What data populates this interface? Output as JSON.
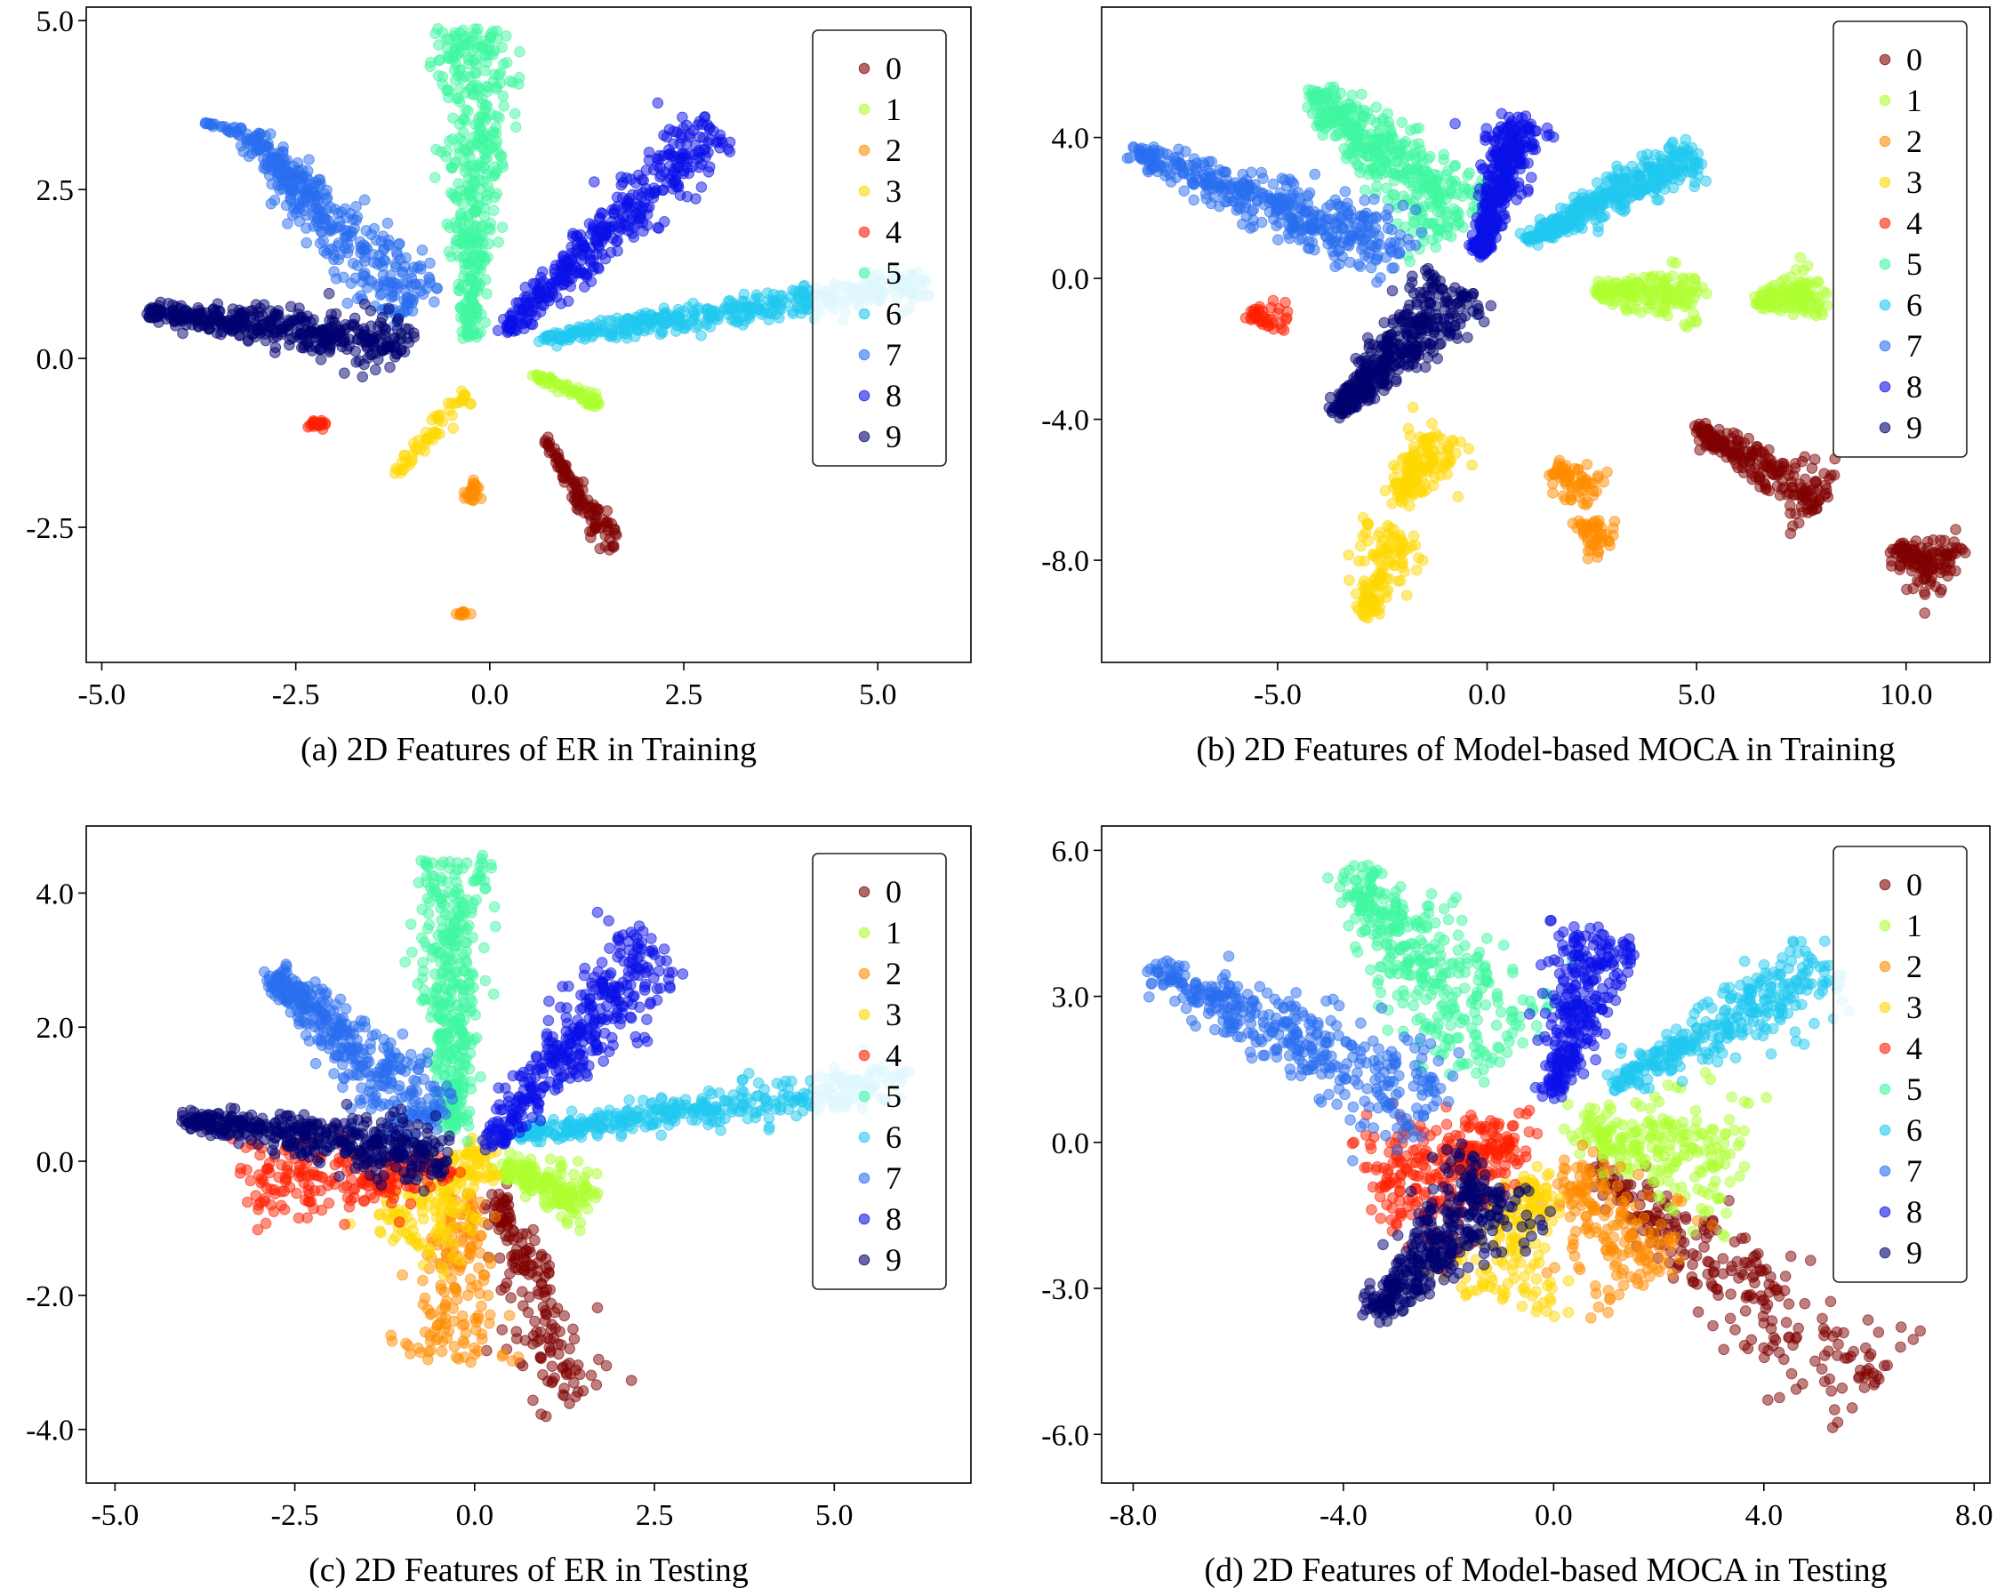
{
  "legend_labels": [
    "0",
    "1",
    "2",
    "3",
    "4",
    "5",
    "6",
    "7",
    "8",
    "9"
  ],
  "colors": [
    "#7f0000",
    "#adff2f",
    "#ff8c00",
    "#ffd700",
    "#ff2000",
    "#40f7a0",
    "#20c8f0",
    "#2a6ef0",
    "#0a10e8",
    "#000070"
  ],
  "chart_data": [
    {
      "type": "scatter",
      "caption": "(a) 2D Features of ER in Training",
      "xlabel": "",
      "ylabel": "",
      "xlim": [
        -5.2,
        6.2
      ],
      "ylim": [
        -4.5,
        5.2
      ],
      "xticks": [
        -5.0,
        -2.5,
        0.0,
        2.5,
        5.0
      ],
      "xtick_labels": [
        "-5.0",
        "-2.5",
        "0.0",
        "2.5",
        "5.0"
      ],
      "yticks": [
        -2.5,
        0.0,
        2.5,
        5.0
      ],
      "ytick_labels": [
        "-2.5",
        "0.0",
        "2.5",
        "5.0"
      ],
      "legend_position": "top-right",
      "grid": false,
      "series": [
        {
          "name": "0",
          "clusters": [
            {
              "from": [
                0.7,
                -1.2
              ],
              "to": [
                1.6,
                -2.8
              ],
              "width": 0.08,
              "n": 110
            }
          ]
        },
        {
          "name": "1",
          "clusters": [
            {
              "from": [
                0.6,
                -0.25
              ],
              "to": [
                1.4,
                -0.65
              ],
              "width": 0.06,
              "n": 70
            }
          ]
        },
        {
          "name": "2",
          "clusters": [
            {
              "from": [
                -0.2,
                -1.8
              ],
              "to": [
                -0.2,
                -2.1
              ],
              "width": 0.05,
              "n": 25
            },
            {
              "from": [
                -0.35,
                -3.75
              ],
              "to": [
                -0.35,
                -3.8
              ],
              "width": 0.04,
              "n": 12
            }
          ]
        },
        {
          "name": "3",
          "clusters": [
            {
              "from": [
                -1.2,
                -1.7
              ],
              "to": [
                -0.3,
                -0.5
              ],
              "width": 0.06,
              "n": 55
            }
          ]
        },
        {
          "name": "4",
          "clusters": [
            {
              "from": [
                -2.4,
                -1.0
              ],
              "to": [
                -2.1,
                -0.95
              ],
              "width": 0.04,
              "n": 20
            }
          ]
        },
        {
          "name": "5",
          "clusters": [
            {
              "from": [
                -0.25,
                0.3
              ],
              "to": [
                -0.15,
                4.9
              ],
              "width": 0.22,
              "n": 420
            }
          ]
        },
        {
          "name": "6",
          "clusters": [
            {
              "from": [
                0.7,
                0.3
              ],
              "to": [
                5.6,
                1.1
              ],
              "width": 0.13,
              "n": 420
            }
          ]
        },
        {
          "name": "7",
          "clusters": [
            {
              "from": [
                -3.1,
                3.3
              ],
              "to": [
                -0.9,
                0.7
              ],
              "width": 0.23,
              "n": 380
            },
            {
              "from": [
                -3.7,
                3.5
              ],
              "to": [
                -3.2,
                3.35
              ],
              "width": 0.03,
              "n": 25
            }
          ]
        },
        {
          "name": "8",
          "clusters": [
            {
              "from": [
                0.2,
                0.4
              ],
              "to": [
                2.9,
                3.4
              ],
              "width": 0.2,
              "n": 400
            }
          ]
        },
        {
          "name": "9",
          "clusters": [
            {
              "from": [
                -4.4,
                0.7
              ],
              "to": [
                -1.0,
                0.2
              ],
              "width": 0.17,
              "n": 420
            }
          ]
        }
      ]
    },
    {
      "type": "scatter",
      "caption": "(b) 2D Features of Model-based MOCA in Training",
      "xlabel": "",
      "ylabel": "",
      "xlim": [
        -9.2,
        12.0
      ],
      "ylim": [
        -10.9,
        7.7
      ],
      "xticks": [
        -5.0,
        0.0,
        5.0,
        10.0
      ],
      "xtick_labels": [
        "-5.0",
        "0.0",
        "5.0",
        "10.0"
      ],
      "yticks": [
        -8.0,
        -4.0,
        0.0,
        4.0
      ],
      "ytick_labels": [
        "-8.0",
        "-4.0",
        "0.0",
        "4.0"
      ],
      "legend_position": "top-right",
      "grid": false,
      "series": [
        {
          "name": "0",
          "clusters": [
            {
              "from": [
                5.0,
                -4.3
              ],
              "to": [
                8.0,
                -6.3
              ],
              "width": 0.35,
              "n": 220
            },
            {
              "from": [
                9.8,
                -7.7
              ],
              "to": [
                11.0,
                -8.4
              ],
              "width": 0.4,
              "n": 130
            }
          ]
        },
        {
          "name": "1",
          "clusters": [
            {
              "from": [
                2.5,
                -0.4
              ],
              "to": [
                5.0,
                -0.5
              ],
              "width": 0.35,
              "n": 170
            },
            {
              "from": [
                6.5,
                -0.7
              ],
              "to": [
                8.0,
                -0.2
              ],
              "width": 0.35,
              "n": 120
            }
          ]
        },
        {
          "name": "2",
          "clusters": [
            {
              "from": [
                1.6,
                -5.3
              ],
              "to": [
                2.6,
                -6.2
              ],
              "width": 0.35,
              "n": 70
            },
            {
              "from": [
                2.2,
                -7.0
              ],
              "to": [
                2.9,
                -7.5
              ],
              "width": 0.3,
              "n": 50
            }
          ]
        },
        {
          "name": "3",
          "clusters": [
            {
              "from": [
                -2.1,
                -6.3
              ],
              "to": [
                -1.0,
                -4.3
              ],
              "width": 0.4,
              "n": 140
            },
            {
              "from": [
                -3.0,
                -9.6
              ],
              "to": [
                -2.0,
                -7.2
              ],
              "width": 0.35,
              "n": 140
            }
          ]
        },
        {
          "name": "4",
          "clusters": [
            {
              "from": [
                -5.6,
                -1.0
              ],
              "to": [
                -4.8,
                -1.1
              ],
              "width": 0.25,
              "n": 40
            }
          ]
        },
        {
          "name": "5",
          "clusters": [
            {
              "from": [
                -4.2,
                5.3
              ],
              "to": [
                -0.5,
                1.6
              ],
              "width": 0.55,
              "n": 420
            }
          ]
        },
        {
          "name": "6",
          "clusters": [
            {
              "from": [
                1.0,
                1.1
              ],
              "to": [
                5.0,
                3.6
              ],
              "width": 0.3,
              "n": 380
            }
          ]
        },
        {
          "name": "7",
          "clusters": [
            {
              "from": [
                -8.4,
                3.6
              ],
              "to": [
                -2.0,
                0.7
              ],
              "width": 0.45,
              "n": 420
            }
          ]
        },
        {
          "name": "8",
          "clusters": [
            {
              "from": [
                -0.2,
                0.7
              ],
              "to": [
                0.8,
                4.5
              ],
              "width": 0.3,
              "n": 380
            }
          ]
        },
        {
          "name": "9",
          "clusters": [
            {
              "from": [
                -3.6,
                -3.8
              ],
              "to": [
                -0.6,
                -0.3
              ],
              "width": 0.4,
              "n": 420
            }
          ]
        }
      ]
    },
    {
      "type": "scatter",
      "caption": "(c) 2D Features of ER in Testing",
      "xlabel": "",
      "ylabel": "",
      "xlim": [
        -5.4,
        6.9
      ],
      "ylim": [
        -4.8,
        5.0
      ],
      "xticks": [
        -5.0,
        -2.5,
        0.0,
        2.5,
        5.0
      ],
      "xtick_labels": [
        "-5.0",
        "-2.5",
        "0.0",
        "2.5",
        "5.0"
      ],
      "yticks": [
        -4.0,
        -2.0,
        0.0,
        2.0,
        4.0
      ],
      "ytick_labels": [
        "-4.0",
        "-2.0",
        "0.0",
        "2.0",
        "4.0"
      ],
      "legend_position": "top-right",
      "grid": false,
      "series": [
        {
          "name": "0",
          "clusters": [
            {
              "from": [
                0.3,
                -0.5
              ],
              "to": [
                1.4,
                -3.6
              ],
              "width": 0.28,
              "n": 180
            }
          ]
        },
        {
          "name": "1",
          "clusters": [
            {
              "from": [
                0.4,
                -0.1
              ],
              "to": [
                1.6,
                -0.6
              ],
              "width": 0.22,
              "n": 160
            }
          ]
        },
        {
          "name": "2",
          "clusters": [
            {
              "from": [
                -0.1,
                -0.5
              ],
              "to": [
                -0.4,
                -2.9
              ],
              "width": 0.32,
              "n": 170
            }
          ]
        },
        {
          "name": "3",
          "clusters": [
            {
              "from": [
                0.2,
                0.2
              ],
              "to": [
                -1.1,
                -1.2
              ],
              "width": 0.35,
              "n": 180
            }
          ]
        },
        {
          "name": "4",
          "clusters": [
            {
              "from": [
                -0.4,
                -0.1
              ],
              "to": [
                -3.2,
                -0.4
              ],
              "width": 0.35,
              "n": 220
            }
          ]
        },
        {
          "name": "5",
          "clusters": [
            {
              "from": [
                -0.3,
                0.5
              ],
              "to": [
                -0.3,
                4.5
              ],
              "width": 0.25,
              "n": 400
            }
          ]
        },
        {
          "name": "6",
          "clusters": [
            {
              "from": [
                0.6,
                0.4
              ],
              "to": [
                6.0,
                1.2
              ],
              "width": 0.17,
              "n": 380
            }
          ]
        },
        {
          "name": "7",
          "clusters": [
            {
              "from": [
                -2.8,
                2.8
              ],
              "to": [
                -0.6,
                0.6
              ],
              "width": 0.28,
              "n": 380
            }
          ]
        },
        {
          "name": "8",
          "clusters": [
            {
              "from": [
                0.2,
                0.3
              ],
              "to": [
                2.5,
                3.2
              ],
              "width": 0.28,
              "n": 380
            }
          ]
        },
        {
          "name": "9",
          "clusters": [
            {
              "from": [
                -4.0,
                0.6
              ],
              "to": [
                -0.4,
                0.1
              ],
              "width": 0.22,
              "n": 420
            }
          ]
        }
      ]
    },
    {
      "type": "scatter",
      "caption": "(d) 2D Features of Model-based MOCA in Testing",
      "xlabel": "",
      "ylabel": "",
      "xlim": [
        -8.6,
        8.3
      ],
      "ylim": [
        -7.0,
        6.5
      ],
      "xticks": [
        -8.0,
        -4.0,
        0.0,
        4.0,
        8.0
      ],
      "xtick_labels": [
        "-8.0",
        "-4.0",
        "0.0",
        "4.0",
        "8.0"
      ],
      "yticks": [
        -6.0,
        -3.0,
        0.0,
        3.0,
        6.0
      ],
      "ytick_labels": [
        "-6.0",
        "-3.0",
        "0.0",
        "3.0",
        "6.0"
      ],
      "legend_position": "top-right",
      "grid": false,
      "series": [
        {
          "name": "0",
          "clusters": [
            {
              "from": [
                0.8,
                -0.6
              ],
              "to": [
                6.2,
                -5.0
              ],
              "width": 0.55,
              "n": 260
            }
          ]
        },
        {
          "name": "1",
          "clusters": [
            {
              "from": [
                0.5,
                0.3
              ],
              "to": [
                3.5,
                -0.4
              ],
              "width": 0.6,
              "n": 220
            }
          ]
        },
        {
          "name": "2",
          "clusters": [
            {
              "from": [
                0.3,
                -0.6
              ],
              "to": [
                1.8,
                -2.8
              ],
              "width": 0.6,
              "n": 180
            }
          ]
        },
        {
          "name": "3",
          "clusters": [
            {
              "from": [
                -0.3,
                -0.8
              ],
              "to": [
                -1.3,
                -3.2
              ],
              "width": 0.55,
              "n": 180
            }
          ]
        },
        {
          "name": "4",
          "clusters": [
            {
              "from": [
                -0.6,
                0.2
              ],
              "to": [
                -3.2,
                -1.2
              ],
              "width": 0.65,
              "n": 300
            }
          ]
        },
        {
          "name": "5",
          "clusters": [
            {
              "from": [
                -3.8,
                5.4
              ],
              "to": [
                -1.0,
                1.8
              ],
              "width": 0.7,
              "n": 360
            }
          ]
        },
        {
          "name": "6",
          "clusters": [
            {
              "from": [
                1.2,
                1.2
              ],
              "to": [
                5.2,
                3.6
              ],
              "width": 0.38,
              "n": 320
            }
          ]
        },
        {
          "name": "7",
          "clusters": [
            {
              "from": [
                -7.6,
                3.5
              ],
              "to": [
                -2.2,
                0.8
              ],
              "width": 0.5,
              "n": 380
            }
          ]
        },
        {
          "name": "8",
          "clusters": [
            {
              "from": [
                0.0,
                1.0
              ],
              "to": [
                0.9,
                4.3
              ],
              "width": 0.35,
              "n": 300
            }
          ]
        },
        {
          "name": "9",
          "clusters": [
            {
              "from": [
                -3.4,
                -3.5
              ],
              "to": [
                -1.0,
                -0.8
              ],
              "width": 0.45,
              "n": 380
            }
          ]
        }
      ]
    }
  ]
}
